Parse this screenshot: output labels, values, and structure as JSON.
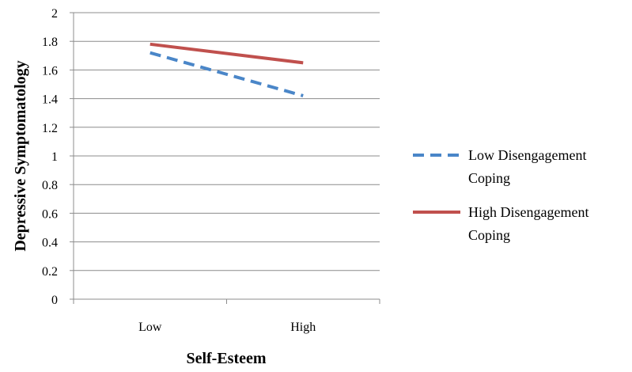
{
  "chart_data": {
    "type": "line",
    "title": "",
    "xlabel": "Self-Esteem",
    "ylabel": "Depressive Symptomatology",
    "categories": [
      "Low",
      "High"
    ],
    "ylim": [
      0,
      2
    ],
    "yticks": [
      "0",
      "0.2",
      "0.4",
      "0.6",
      "0.8",
      "1",
      "1.2",
      "1.4",
      "1.6",
      "1.8",
      "2"
    ],
    "grid": true,
    "legend_position": "right",
    "series": [
      {
        "name_lines": [
          "Low Disengagement",
          "Coping"
        ],
        "values": [
          1.72,
          1.42
        ],
        "color": "#4a86c8",
        "style": "dashed"
      },
      {
        "name_lines": [
          "High Disengagement",
          "Coping"
        ],
        "values": [
          1.78,
          1.65
        ],
        "color": "#c0504d",
        "style": "solid"
      }
    ]
  }
}
